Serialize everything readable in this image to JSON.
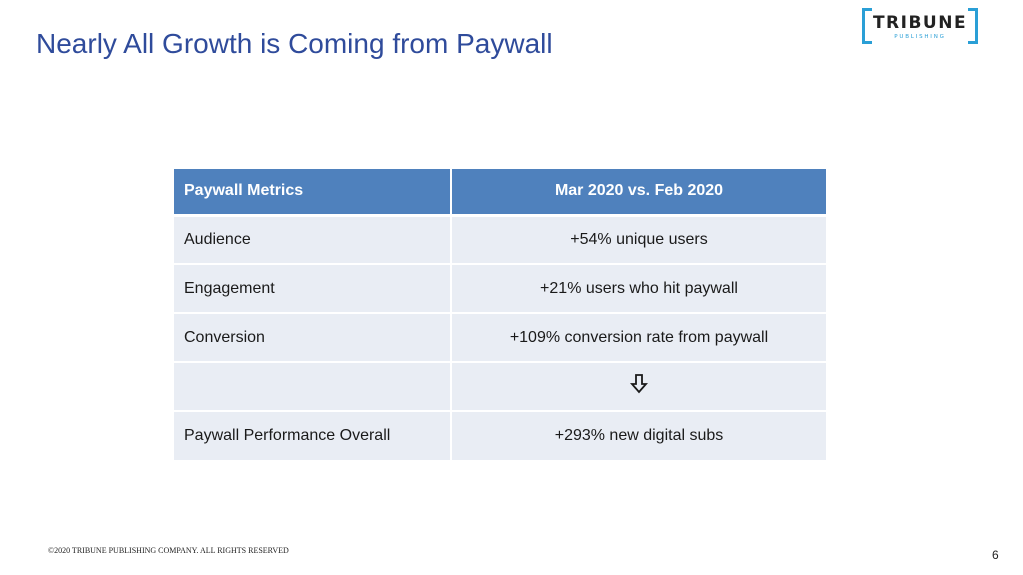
{
  "slide": {
    "title": "Nearly All Growth is Coming from Paywall",
    "logo": {
      "wordmark": "TRIBUNE",
      "subtext": "PUBLISHING"
    },
    "table": {
      "headers": [
        "Paywall Metrics",
        "Mar 2020 vs. Feb 2020"
      ],
      "rows": [
        {
          "metric": "Audience",
          "change": "+54% unique users"
        },
        {
          "metric": "Engagement",
          "change": "+21% users who hit paywall"
        },
        {
          "metric": "Conversion",
          "change": "+109% conversion rate from paywall"
        },
        {
          "metric": "",
          "change": "",
          "icon": "down-arrow-icon"
        },
        {
          "metric": "Paywall Performance Overall",
          "change": "+293% new digital subs"
        }
      ]
    },
    "footer": "©2020 TRIBUNE PUBLISHING COMPANY. ALL RIGHTS RESERVED",
    "page_number": "6"
  },
  "colors": {
    "title": "#2f4b9b",
    "header_bg": "#4f81bd",
    "row_bg": "#e9edf4",
    "logo_accent": "#2a9fd6"
  }
}
